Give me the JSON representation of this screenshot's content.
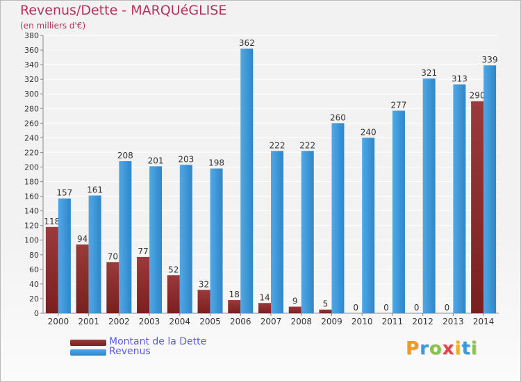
{
  "title": "Revenus/Dette - MARQUéGLISE",
  "subtitle": "(en milliers d'€)",
  "legend": {
    "debt_label": "Montant de la Dette",
    "revenue_label": "Revenus"
  },
  "logo": {
    "letters": [
      "P",
      "r",
      "o",
      "x",
      "i",
      "t",
      "i"
    ],
    "colors": [
      "#f09a20",
      "#3a9ad9",
      "#8bc34a",
      "#e0454c",
      "#f0b020",
      "#3a9ad9",
      "#8bc34a"
    ]
  },
  "colors": {
    "debt": "#7a1f1f",
    "debt_light": "#9b3a3a",
    "revenue": "#4fa8e6",
    "revenue_dark": "#2f86c8",
    "grid": "#ffffff",
    "axis_text": "#333333",
    "title": "#b0325a",
    "legend_text": "#5a5ae0"
  },
  "chart_data": {
    "type": "bar",
    "categories": [
      "2000",
      "2001",
      "2002",
      "2003",
      "2004",
      "2005",
      "2006",
      "2007",
      "2008",
      "2009",
      "2010",
      "2011",
      "2012",
      "2013",
      "2014"
    ],
    "series": [
      {
        "name": "Montant de la Dette",
        "values": [
          118,
          94,
          70,
          77,
          52,
          32,
          18,
          14,
          9,
          5,
          0,
          0,
          0,
          0,
          290
        ]
      },
      {
        "name": "Revenus",
        "values": [
          157,
          161,
          208,
          201,
          203,
          198,
          362,
          222,
          222,
          260,
          240,
          277,
          321,
          313,
          339
        ]
      }
    ],
    "ylim": [
      0,
      380
    ],
    "yticks": [
      0,
      20,
      40,
      60,
      80,
      100,
      120,
      140,
      160,
      180,
      200,
      220,
      240,
      260,
      280,
      300,
      320,
      340,
      360,
      380
    ],
    "grid": true,
    "legend_position": "bottom-left"
  }
}
